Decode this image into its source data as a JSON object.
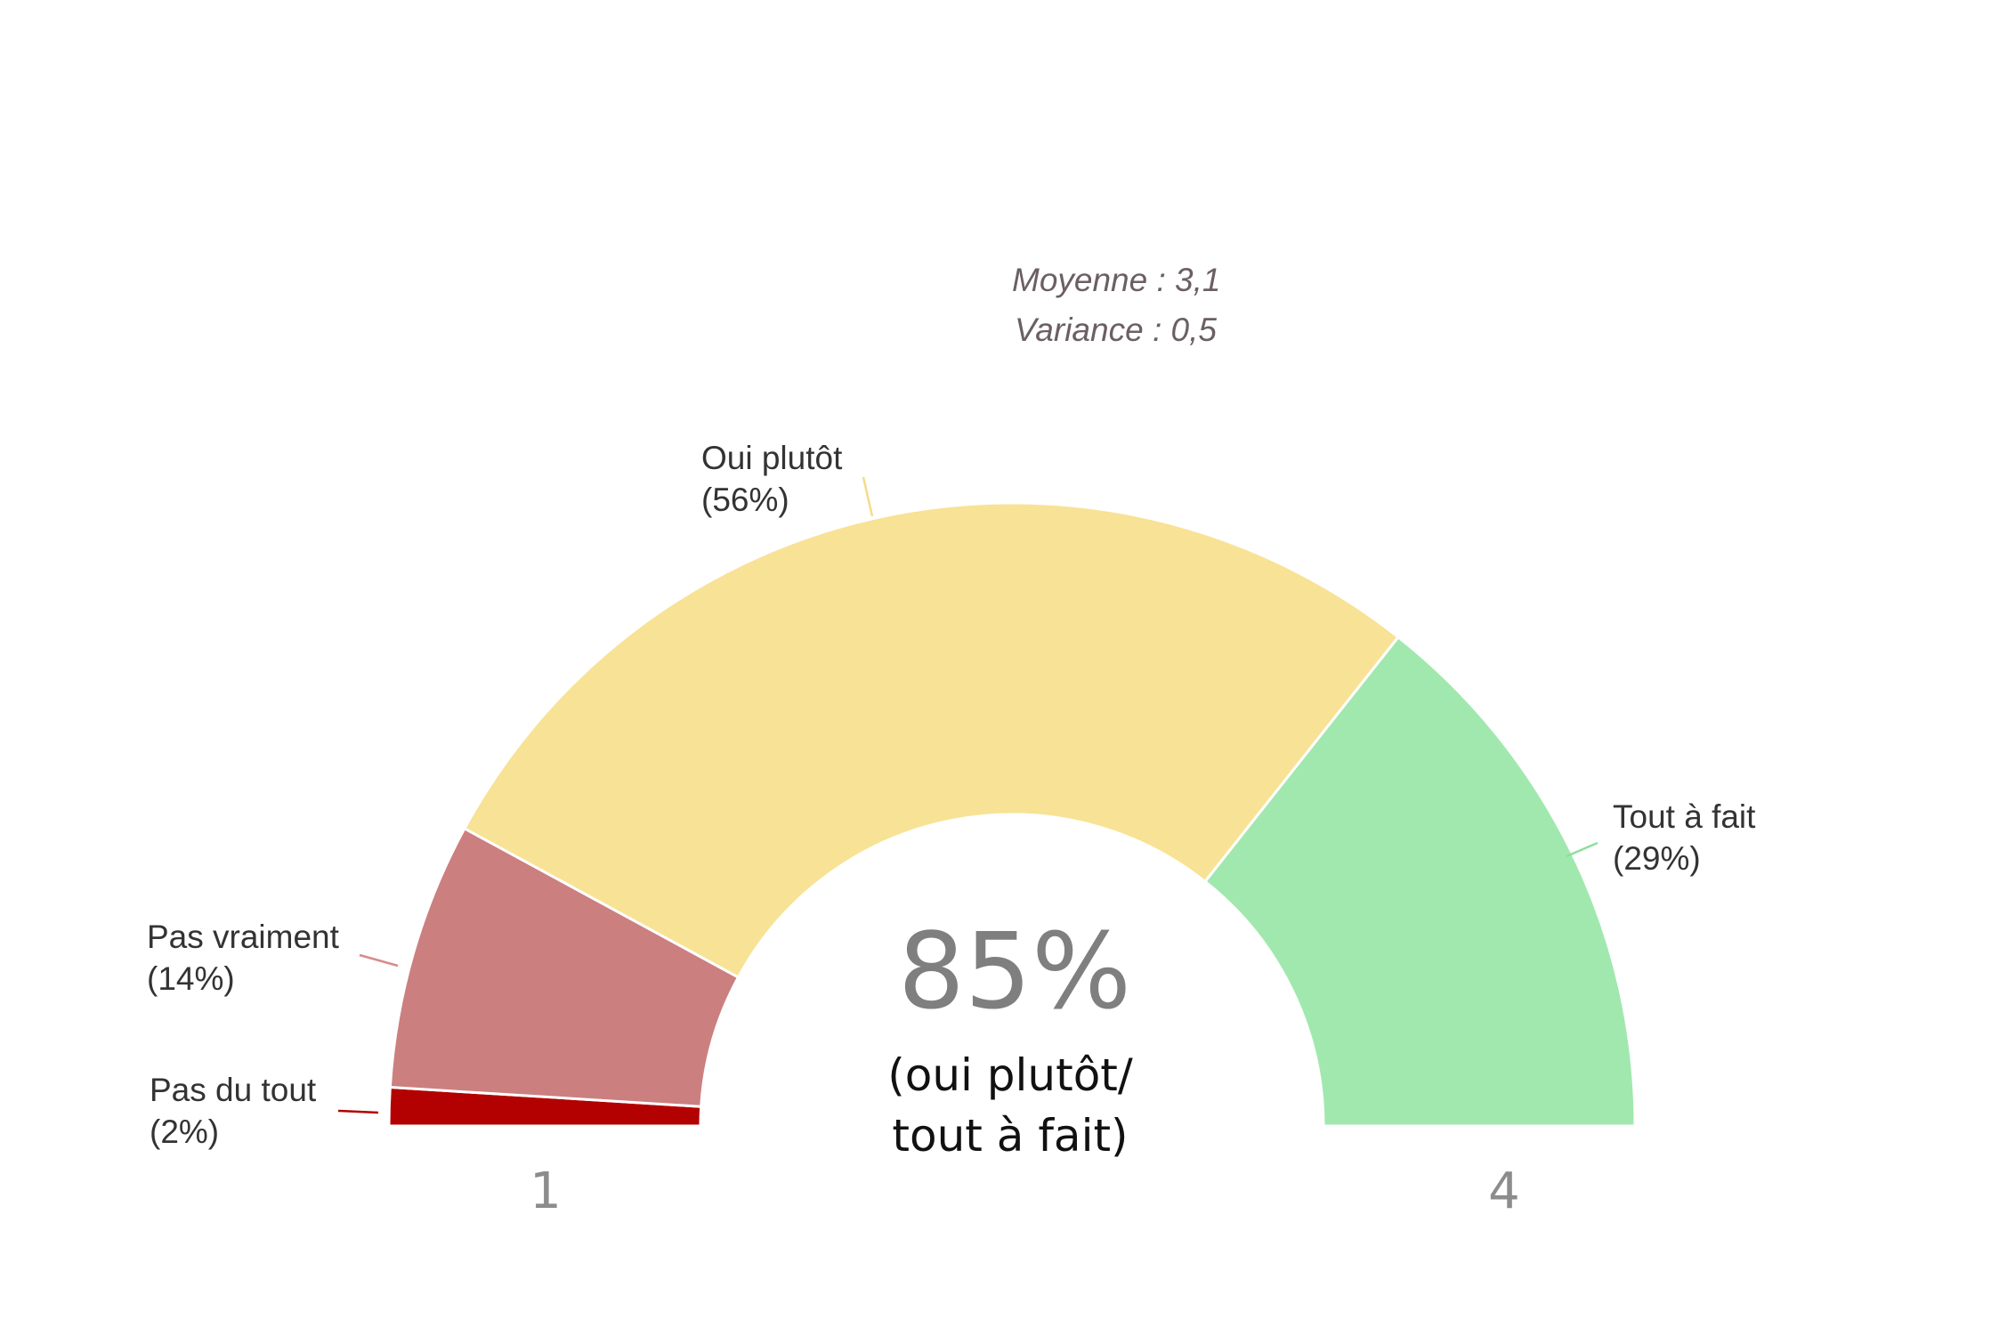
{
  "chart_data": {
    "type": "pie",
    "variant": "semi-donut",
    "segments": [
      {
        "label": "Pas du tout",
        "value": 2,
        "value_label": "(2%)",
        "color": "#b30000",
        "leader_color": "#b30000"
      },
      {
        "label": "Pas vraiment",
        "value": 14,
        "value_label": "(14%)",
        "color": "#cc7f7f",
        "leader_color": "#d98a8a"
      },
      {
        "label": "Oui plutôt",
        "value": 56,
        "value_label": "(56%)",
        "color": "#f8e295",
        "leader_color": "#f5dc8a"
      },
      {
        "label": "Tout à fait",
        "value": 29,
        "value_label": "(29%)",
        "color": "#a1e8ae",
        "leader_color": "#8fdf9c"
      }
    ],
    "stats": {
      "mean": "Moyenne : 3,1",
      "variance": "Variance : 0,5"
    },
    "center": {
      "value": "85%",
      "line1": "(oui plutôt/",
      "line2": "tout à fait)"
    },
    "axis": {
      "min_label": "1",
      "max_label": "4"
    },
    "legend": "none",
    "grid": false
  }
}
